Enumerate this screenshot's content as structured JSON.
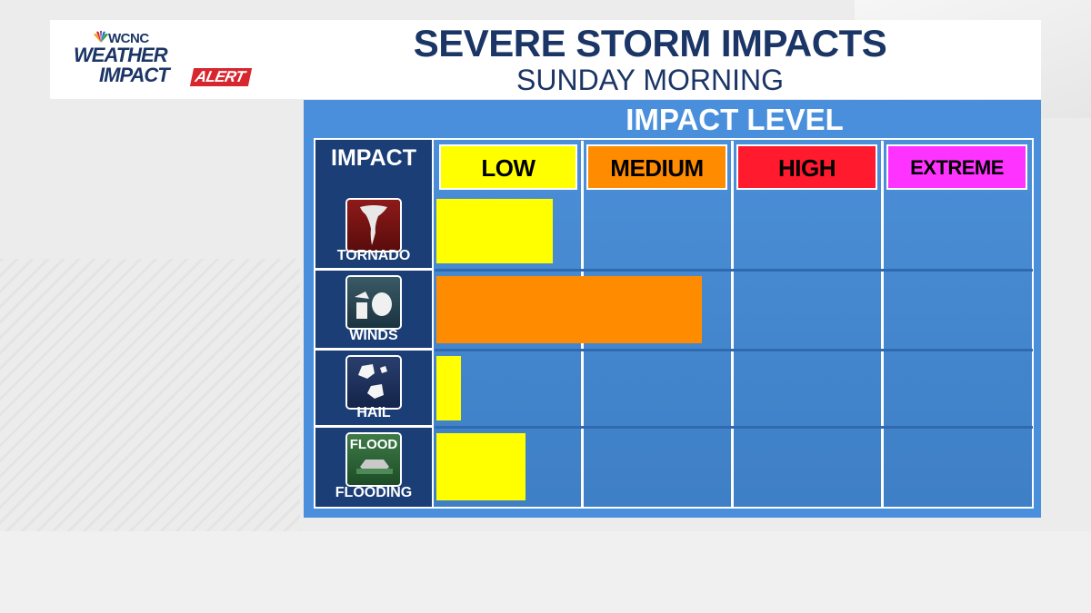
{
  "header": {
    "logo": {
      "station": "WCNC",
      "line1": "WEATHER",
      "line2": "IMPACT",
      "badge": "ALERT"
    },
    "title": "SEVERE STORM IMPACTS",
    "subtitle": "SUNDAY MORNING"
  },
  "colors": {
    "navy": "#1b3566",
    "board_blue": "#4a8fdc",
    "low": "#ffff00",
    "medium": "#ff8c00",
    "high": "#ff1a2e",
    "extreme": "#ff33ff",
    "alert_red": "#d7262e"
  },
  "chart_data": {
    "type": "bar",
    "title": "IMPACT LEVEL",
    "row_header": "IMPACT",
    "levels": [
      "LOW",
      "MEDIUM",
      "HIGH",
      "EXTREME"
    ],
    "categories": [
      "TORNADO",
      "WINDS",
      "HAIL",
      "FLOODING"
    ],
    "icons": [
      "tornado-icon",
      "wind-damage-icon",
      "hail-icon",
      "flood-icon"
    ],
    "flood_icon_text": "FLOOD",
    "values": [
      0.8,
      1.8,
      0.18,
      0.62
    ],
    "value_units": "impact level (0 = none, 1 = low, 2 = medium, 3 = high, 4 = extreme)",
    "bar_colors": [
      "#ffff00",
      "#ff8c00",
      "#ffff00",
      "#ffff00"
    ]
  }
}
